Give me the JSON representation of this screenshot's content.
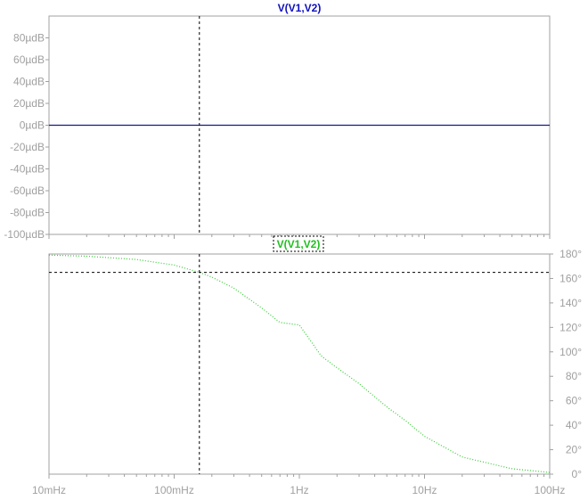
{
  "chart_data": [
    {
      "type": "line",
      "title": "V(V1,V2)",
      "title_color": "#1010c0",
      "xlabel": "",
      "ylabel": "",
      "x_scale": "log",
      "xlim": [
        0.01,
        100
      ],
      "ylim": [
        -100,
        100
      ],
      "y_unit": "µdB",
      "yticks": [
        80,
        60,
        40,
        20,
        0,
        -20,
        -40,
        -60,
        -80,
        -100
      ],
      "ytick_labels": [
        "80µdB",
        "60µdB",
        "40µdB",
        "20µdB",
        "0µdB",
        "-20µdB",
        "-40µdB",
        "-60µdB",
        "-80µdB",
        "-100µdB"
      ],
      "series": [
        {
          "color": "#1a1a80",
          "style": "solid",
          "x": [
            0.01,
            0.1,
            1,
            10,
            100
          ],
          "values": [
            0,
            0,
            0,
            0,
            0
          ]
        }
      ],
      "cursor": {
        "x": 0.159
      }
    },
    {
      "type": "line",
      "title": "V(V1,V2)",
      "title_color": "#20c020",
      "xlabel": "",
      "ylabel": "",
      "x_scale": "log",
      "xlim": [
        0.01,
        100
      ],
      "ylim": [
        0,
        180
      ],
      "y_unit": "°",
      "yticks": [
        180,
        160,
        140,
        120,
        100,
        80,
        60,
        40,
        20,
        0
      ],
      "ytick_labels": [
        "180°",
        "160°",
        "140°",
        "120°",
        "100°",
        "80°",
        "60°",
        "40°",
        "20°",
        "0°"
      ],
      "xticks": [
        0.01,
        0.1,
        1,
        10,
        100
      ],
      "xtick_labels": [
        "10mHz",
        "100mHz",
        "1Hz",
        "10Hz",
        "100Hz"
      ],
      "series": [
        {
          "color": "#33cc33",
          "style": "dotted",
          "x": [
            0.01,
            0.02,
            0.05,
            0.1,
            0.159,
            0.2,
            0.3,
            0.5,
            0.7,
            1,
            1.5,
            2,
            3,
            5,
            7,
            10,
            20,
            50,
            100
          ],
          "values": [
            179.1,
            178.2,
            175.5,
            171.0,
            165.0,
            161.1,
            152.1,
            135.9,
            124.0,
            122.0,
            96.5,
            87.0,
            74.0,
            55.0,
            44.0,
            31.0,
            14.0,
            4.4,
            1.4
          ]
        }
      ],
      "cursor": {
        "x": 0.159,
        "y": 165
      }
    }
  ]
}
